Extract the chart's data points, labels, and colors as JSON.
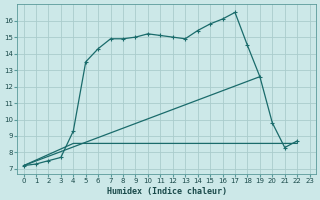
{
  "xlabel": "Humidex (Indice chaleur)",
  "bg_color": "#cce8e8",
  "grid_color": "#aacccc",
  "line_color": "#1a6b6b",
  "xlim": [
    -0.5,
    23.5
  ],
  "ylim": [
    6.7,
    17.0
  ],
  "xticks": [
    0,
    1,
    2,
    3,
    4,
    5,
    6,
    7,
    8,
    9,
    10,
    11,
    12,
    13,
    14,
    15,
    16,
    17,
    18,
    19,
    20,
    21,
    22,
    23
  ],
  "yticks": [
    7,
    8,
    9,
    10,
    11,
    12,
    13,
    14,
    15,
    16
  ],
  "curve1_x": [
    0,
    1,
    2,
    3,
    4,
    5,
    6,
    7,
    8,
    9,
    10,
    11,
    12,
    13,
    14,
    15,
    16,
    17,
    18,
    19,
    20,
    21,
    22
  ],
  "curve1_y": [
    7.2,
    7.3,
    7.5,
    7.7,
    9.3,
    13.5,
    14.3,
    14.9,
    14.9,
    15.0,
    15.2,
    15.1,
    15.0,
    14.9,
    15.4,
    15.8,
    16.1,
    16.5,
    14.5,
    12.6,
    9.8,
    8.3,
    8.7
  ],
  "curve2_x": [
    0,
    4,
    22
  ],
  "curve2_y": [
    7.2,
    8.55,
    8.55
  ],
  "curve3_x": [
    0,
    19
  ],
  "curve3_y": [
    7.2,
    12.6
  ]
}
